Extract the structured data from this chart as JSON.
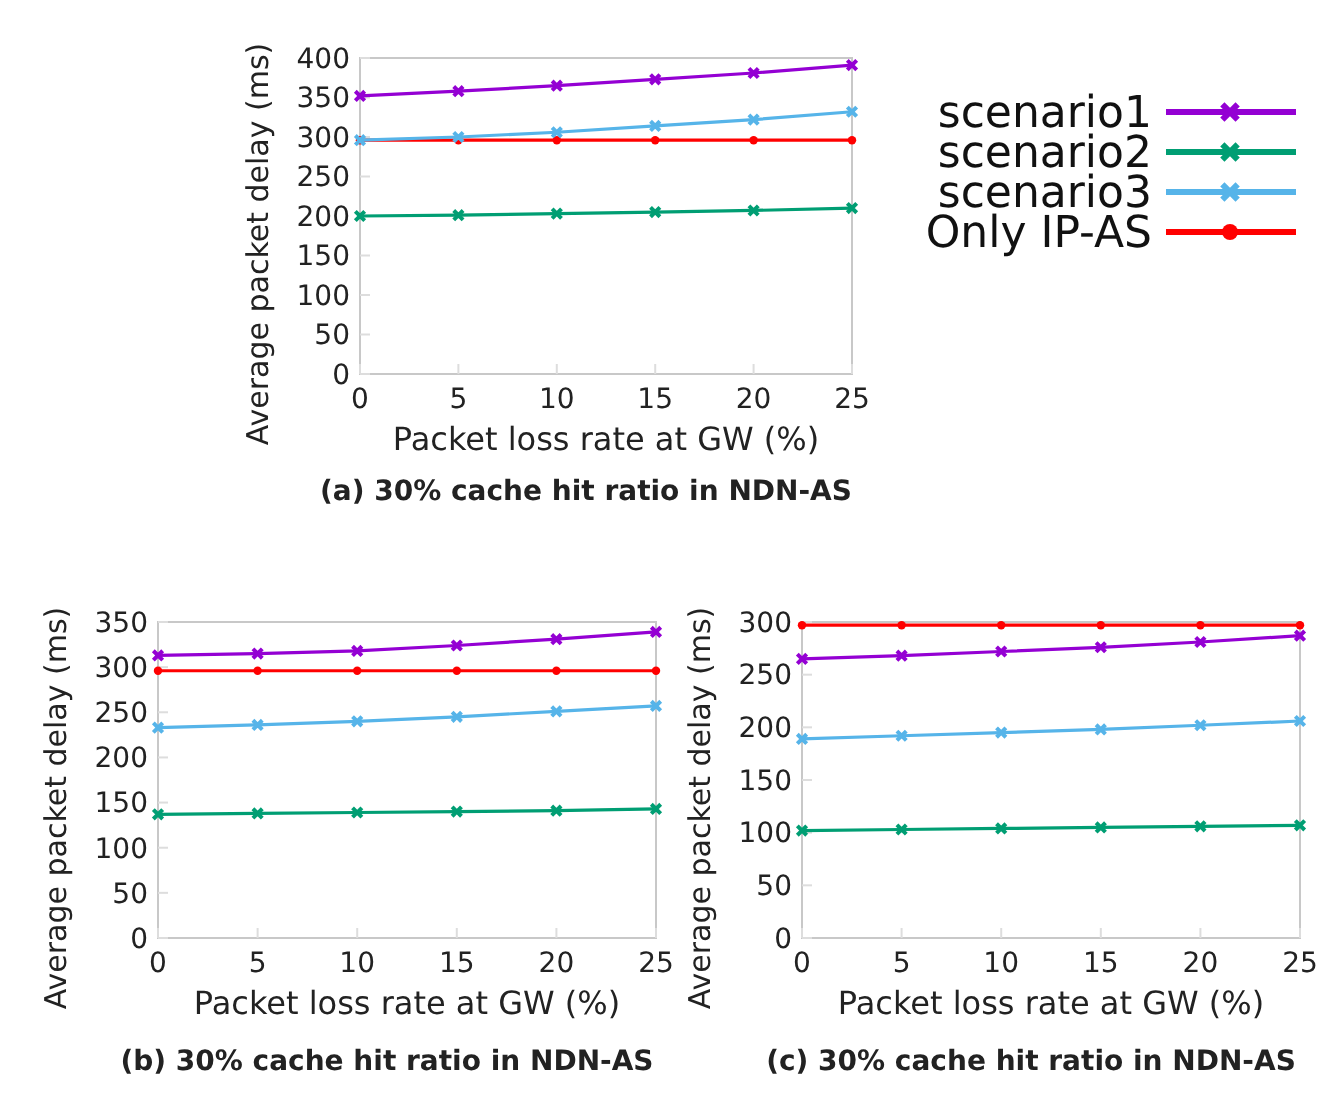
{
  "chart_data": [
    {
      "type": "line",
      "title": "(a) 30% cache hit ratio in NDN-AS",
      "xlabel": "Packet loss rate at GW (%)",
      "ylabel": "Average packet delay (ms)",
      "x": [
        0,
        5,
        10,
        15,
        20,
        25
      ],
      "xlim": [
        0,
        25
      ],
      "xticks": [
        0,
        5,
        10,
        15,
        20,
        25
      ],
      "ylim": [
        0,
        400
      ],
      "yticks": [
        0,
        50,
        100,
        150,
        200,
        250,
        300,
        350,
        400
      ],
      "legend": "right",
      "series": [
        {
          "name": "scenario1",
          "color": "#9400d3",
          "marker": "cross",
          "values": [
            352,
            358,
            365,
            373,
            381,
            391
          ]
        },
        {
          "name": "scenario2",
          "color": "#009e73",
          "marker": "cross",
          "values": [
            200,
            201,
            203,
            205,
            207,
            210
          ]
        },
        {
          "name": "scenario3",
          "color": "#56b4e9",
          "marker": "cross",
          "values": [
            296,
            300,
            306,
            314,
            322,
            332
          ]
        },
        {
          "name": "Only IP-AS",
          "color": "#ff0000",
          "marker": "circle",
          "values": [
            296,
            296,
            296,
            296,
            296,
            296
          ]
        }
      ]
    },
    {
      "type": "line",
      "title": "(b) 30% cache hit ratio in NDN-AS",
      "xlabel": "Packet loss rate at GW (%)",
      "ylabel": "Average packet delay (ms)",
      "x": [
        0,
        5,
        10,
        15,
        20,
        25
      ],
      "xlim": [
        0,
        25
      ],
      "xticks": [
        0,
        5,
        10,
        15,
        20,
        25
      ],
      "ylim": [
        0,
        350
      ],
      "yticks": [
        0,
        50,
        100,
        150,
        200,
        250,
        300,
        350
      ],
      "series": [
        {
          "color": "#9400d3",
          "marker": "cross",
          "values": [
            313,
            315,
            318,
            324,
            331,
            339
          ]
        },
        {
          "color": "#009e73",
          "marker": "cross",
          "values": [
            137,
            138,
            139,
            140,
            141,
            143
          ]
        },
        {
          "color": "#56b4e9",
          "marker": "cross",
          "values": [
            233,
            236,
            240,
            245,
            251,
            257
          ]
        },
        {
          "color": "#ff0000",
          "marker": "circle",
          "values": [
            296,
            296,
            296,
            296,
            296,
            296
          ]
        }
      ]
    },
    {
      "type": "line",
      "title": "(c) 30% cache hit ratio in NDN-AS",
      "xlabel": "Packet loss rate at GW (%)",
      "ylabel": "Average packet delay (ms)",
      "x": [
        0,
        5,
        10,
        15,
        20,
        25
      ],
      "xlim": [
        0,
        25
      ],
      "xticks": [
        0,
        5,
        10,
        15,
        20,
        25
      ],
      "ylim": [
        0,
        300
      ],
      "yticks": [
        0,
        50,
        100,
        150,
        200,
        250,
        300
      ],
      "series": [
        {
          "color": "#9400d3",
          "marker": "cross",
          "values": [
            265,
            268,
            272,
            276,
            281,
            287
          ]
        },
        {
          "color": "#009e73",
          "marker": "cross",
          "values": [
            102,
            103,
            104,
            105,
            106,
            107
          ]
        },
        {
          "color": "#56b4e9",
          "marker": "cross",
          "values": [
            189,
            192,
            195,
            198,
            202,
            206
          ]
        },
        {
          "color": "#ff0000",
          "marker": "circle",
          "values": [
            297,
            297,
            297,
            297,
            297,
            297
          ]
        }
      ]
    }
  ]
}
